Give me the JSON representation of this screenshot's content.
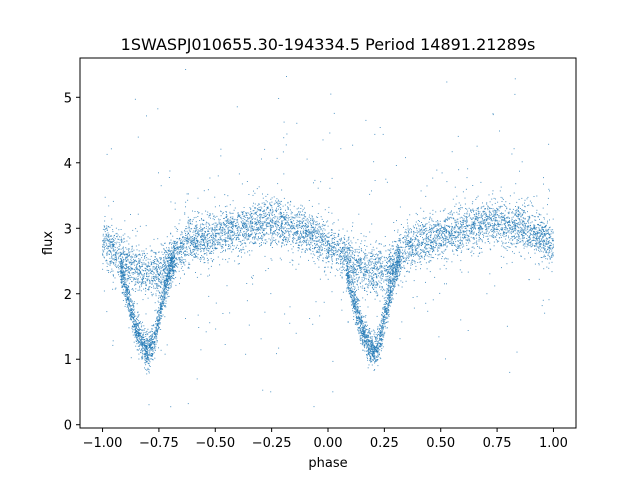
{
  "chart_data": {
    "type": "scatter",
    "title": "1SWASPJ010655.30-194334.5 Period 14891.21289s",
    "xlabel": "phase",
    "ylabel": "flux",
    "xlim": [
      -1.1,
      1.1
    ],
    "ylim": [
      -0.05,
      5.6
    ],
    "grid": false,
    "legend": "none",
    "x_ticks": [
      -1.0,
      -0.75,
      -0.5,
      -0.25,
      0.0,
      0.25,
      0.5,
      0.75,
      1.0
    ],
    "x_tick_labels": [
      "−1.00",
      "−0.75",
      "−0.50",
      "−0.25",
      "0.00",
      "0.25",
      "0.50",
      "0.75",
      "1.00"
    ],
    "y_ticks": [
      0,
      1,
      2,
      3,
      4,
      5
    ],
    "y_tick_labels": [
      "0",
      "1",
      "2",
      "3",
      "4",
      "5"
    ],
    "marker_color": "#1f77b4",
    "series": [
      {
        "name": "",
        "description_curve": "phase-folded light curve, two cycles shown",
        "upper_branch": {
          "x": [
            -1.0,
            -0.95,
            -0.9,
            -0.85,
            -0.8,
            -0.75,
            -0.7,
            -0.65,
            -0.6,
            -0.5,
            -0.4,
            -0.3,
            -0.25,
            -0.2,
            -0.1,
            -0.05,
            0.0,
            0.05,
            0.1,
            0.15,
            0.2,
            0.25,
            0.3,
            0.35,
            0.4,
            0.5,
            0.6,
            0.7,
            0.75,
            0.8,
            0.9,
            0.95,
            1.0
          ],
          "y": [
            2.8,
            2.65,
            2.5,
            2.38,
            2.32,
            2.35,
            2.5,
            2.7,
            2.8,
            2.88,
            2.98,
            3.07,
            3.1,
            3.07,
            2.95,
            2.85,
            2.75,
            2.65,
            2.5,
            2.38,
            2.32,
            2.35,
            2.5,
            2.7,
            2.8,
            2.88,
            2.98,
            3.07,
            3.1,
            3.07,
            2.95,
            2.85,
            2.78
          ]
        },
        "eclipse_branch": {
          "x": [
            -0.92,
            -0.88,
            -0.85,
            -0.82,
            -0.8,
            -0.78,
            -0.76,
            -0.74,
            -0.72,
            -0.7,
            -0.68,
            0.08,
            0.12,
            0.15,
            0.18,
            0.2,
            0.22,
            0.24,
            0.26,
            0.28,
            0.3,
            0.32
          ],
          "y": [
            2.4,
            1.85,
            1.45,
            1.2,
            1.12,
            1.2,
            1.45,
            1.8,
            2.1,
            2.35,
            2.55,
            2.4,
            1.85,
            1.45,
            1.2,
            1.12,
            1.2,
            1.45,
            1.8,
            2.1,
            2.35,
            2.55
          ]
        }
      }
    ]
  }
}
